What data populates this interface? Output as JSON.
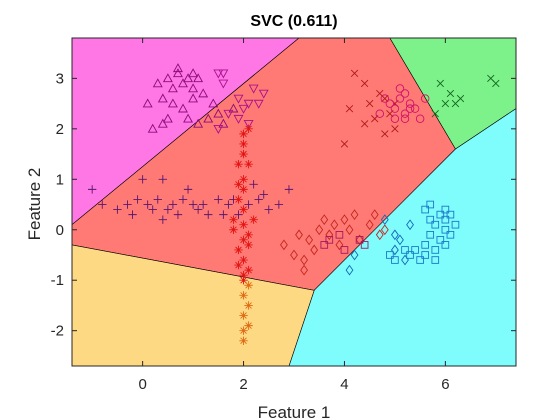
{
  "chart_data": {
    "type": "scatter",
    "title": "SVC (0.611)",
    "xlabel": "Feature 1",
    "ylabel": "Feature 2",
    "xlim": [
      -1.4,
      7.4
    ],
    "ylim": [
      -2.7,
      3.8
    ],
    "xticks": [
      0,
      2,
      4,
      6
    ],
    "yticks": [
      -2,
      -1,
      0,
      1,
      2,
      3
    ],
    "grid": false,
    "legend": "none",
    "regions": [
      {
        "name": "magenta",
        "color": "#ff77e5",
        "polygon": [
          [
            -1.4,
            3.8
          ],
          [
            3.1,
            3.8
          ],
          [
            -1.4,
            0.1
          ]
        ]
      },
      {
        "name": "red",
        "color": "#ff7a75",
        "polygon": [
          [
            3.1,
            3.8
          ],
          [
            4.9,
            3.8
          ],
          [
            6.2,
            1.6
          ],
          [
            3.4,
            -1.2
          ],
          [
            -1.4,
            -0.3
          ],
          [
            -1.4,
            0.1
          ]
        ]
      },
      {
        "name": "green",
        "color": "#7ef28a",
        "polygon": [
          [
            4.9,
            3.8
          ],
          [
            7.4,
            3.8
          ],
          [
            7.4,
            2.4
          ],
          [
            6.2,
            1.6
          ]
        ]
      },
      {
        "name": "cyan",
        "color": "#7ffdfd",
        "polygon": [
          [
            7.4,
            2.4
          ],
          [
            7.4,
            -2.7
          ],
          [
            2.9,
            -2.7
          ],
          [
            3.4,
            -1.2
          ],
          [
            6.2,
            1.6
          ]
        ]
      },
      {
        "name": "orange",
        "color": "#fed983",
        "polygon": [
          [
            -1.4,
            -0.3
          ],
          [
            3.4,
            -1.2
          ],
          [
            2.9,
            -2.7
          ],
          [
            -1.4,
            -2.7
          ]
        ]
      }
    ],
    "series": [
      {
        "marker": "triangle-up",
        "color": "#8b0a7a",
        "points": [
          [
            0.3,
            2.9
          ],
          [
            0.5,
            3.0
          ],
          [
            0.6,
            2.8
          ],
          [
            0.7,
            3.1
          ],
          [
            0.8,
            2.9
          ],
          [
            0.9,
            3.0
          ],
          [
            1.0,
            2.8
          ],
          [
            1.1,
            3.0
          ],
          [
            0.4,
            2.6
          ],
          [
            0.6,
            2.5
          ],
          [
            0.8,
            2.4
          ],
          [
            1.0,
            2.6
          ],
          [
            1.2,
            2.7
          ],
          [
            1.4,
            2.5
          ],
          [
            1.5,
            2.3
          ],
          [
            1.3,
            2.2
          ],
          [
            0.2,
            2.0
          ],
          [
            0.4,
            2.1
          ],
          [
            0.9,
            2.2
          ],
          [
            1.1,
            2.1
          ],
          [
            1.6,
            2.1
          ],
          [
            1.8,
            2.4
          ],
          [
            0.7,
            3.2
          ],
          [
            1.0,
            3.1
          ],
          [
            0.5,
            2.2
          ],
          [
            0.1,
            2.5
          ]
        ]
      },
      {
        "marker": "triangle-down",
        "color": "#a8108f",
        "points": [
          [
            1.5,
            3.1
          ],
          [
            1.6,
            2.9
          ],
          [
            1.9,
            2.6
          ],
          [
            2.0,
            2.4
          ],
          [
            2.1,
            2.1
          ],
          [
            2.2,
            2.8
          ],
          [
            2.3,
            2.5
          ],
          [
            1.7,
            2.3
          ],
          [
            1.5,
            2.0
          ],
          [
            2.4,
            2.7
          ],
          [
            1.6,
            3.1
          ],
          [
            2.1,
            2.5
          ],
          [
            1.9,
            2.2
          ]
        ]
      },
      {
        "marker": "x",
        "color": "#b01818",
        "points": [
          [
            4.2,
            3.1
          ],
          [
            4.5,
            2.5
          ],
          [
            4.6,
            2.2
          ],
          [
            4.8,
            2.6
          ],
          [
            4.9,
            2.3
          ],
          [
            5.0,
            2.0
          ],
          [
            4.4,
            2.1
          ],
          [
            4.1,
            2.4
          ],
          [
            4.7,
            2.7
          ],
          [
            4.0,
            1.7
          ],
          [
            4.8,
            1.9
          ],
          [
            5.0,
            2.5
          ],
          [
            4.4,
            2.9
          ]
        ]
      },
      {
        "marker": "x",
        "color": "#12661e",
        "points": [
          [
            5.9,
            2.9
          ],
          [
            6.1,
            2.7
          ],
          [
            6.2,
            2.5
          ],
          [
            6.3,
            2.6
          ],
          [
            6.9,
            3.0
          ],
          [
            7.0,
            2.9
          ],
          [
            5.8,
            2.3
          ],
          [
            6.0,
            2.5
          ]
        ]
      },
      {
        "marker": "circle",
        "color": "#d0106a",
        "points": [
          [
            4.9,
            2.5
          ],
          [
            5.0,
            2.4
          ],
          [
            5.1,
            2.6
          ],
          [
            5.2,
            2.3
          ],
          [
            5.3,
            2.5
          ],
          [
            5.0,
            2.2
          ],
          [
            5.2,
            2.7
          ],
          [
            5.4,
            2.4
          ],
          [
            5.5,
            2.2
          ],
          [
            5.1,
            2.8
          ],
          [
            4.7,
            2.3
          ],
          [
            5.3,
            2.4
          ],
          [
            5.6,
            2.6
          ],
          [
            5.2,
            2.2
          ],
          [
            4.8,
            2.6
          ]
        ]
      },
      {
        "marker": "plus",
        "color": "#5a1670",
        "points": [
          [
            -1.0,
            0.8
          ],
          [
            -0.5,
            0.4
          ],
          [
            -0.3,
            0.5
          ],
          [
            -0.1,
            0.6
          ],
          [
            0.0,
            1.0
          ],
          [
            0.1,
            0.5
          ],
          [
            0.2,
            0.4
          ],
          [
            0.3,
            0.6
          ],
          [
            0.5,
            0.4
          ],
          [
            0.6,
            0.5
          ],
          [
            0.7,
            0.3
          ],
          [
            0.8,
            0.6
          ],
          [
            1.0,
            0.5
          ],
          [
            1.1,
            0.4
          ],
          [
            1.3,
            0.3
          ],
          [
            1.5,
            0.6
          ],
          [
            1.7,
            0.5
          ],
          [
            1.9,
            0.3
          ],
          [
            2.1,
            0.5
          ],
          [
            2.3,
            0.6
          ],
          [
            2.4,
            0.7
          ],
          [
            2.5,
            0.4
          ],
          [
            2.7,
            0.5
          ],
          [
            2.9,
            0.8
          ],
          [
            0.4,
            1.0
          ],
          [
            0.9,
            0.8
          ],
          [
            1.2,
            0.5
          ],
          [
            1.6,
            0.3
          ],
          [
            -0.8,
            0.5
          ],
          [
            -0.2,
            0.3
          ],
          [
            0.4,
            0.2
          ],
          [
            1.8,
            0.6
          ],
          [
            2.2,
            0.9
          ]
        ]
      },
      {
        "marker": "asterisk",
        "color": "#e31414",
        "points": [
          [
            2.0,
            1.9
          ],
          [
            2.0,
            1.7
          ],
          [
            1.9,
            1.3
          ],
          [
            2.1,
            1.3
          ],
          [
            2.0,
            1.0
          ],
          [
            2.0,
            0.8
          ],
          [
            1.9,
            0.6
          ],
          [
            2.0,
            0.4
          ],
          [
            1.8,
            0.2
          ],
          [
            2.0,
            0.1
          ],
          [
            2.1,
            -0.1
          ],
          [
            2.0,
            -0.2
          ],
          [
            1.9,
            -0.4
          ],
          [
            2.0,
            -0.6
          ],
          [
            1.9,
            -0.7
          ],
          [
            2.1,
            -0.8
          ],
          [
            2.0,
            -1.0
          ],
          [
            2.1,
            -0.3
          ],
          [
            1.8,
            0.0
          ],
          [
            2.2,
            0.2
          ],
          [
            2.0,
            1.5
          ],
          [
            1.9,
            0.9
          ],
          [
            2.1,
            2.0
          ],
          [
            2.0,
            -0.9
          ]
        ]
      },
      {
        "marker": "asterisk",
        "color": "#e06a12",
        "points": [
          [
            2.0,
            -1.3
          ],
          [
            2.1,
            -1.5
          ],
          [
            2.0,
            -1.7
          ],
          [
            2.1,
            -1.9
          ],
          [
            2.0,
            -2.2
          ],
          [
            2.0,
            -2.0
          ],
          [
            2.1,
            -1.1
          ]
        ]
      },
      {
        "marker": "diamond",
        "color": "#c4261e",
        "points": [
          [
            2.8,
            -0.3
          ],
          [
            3.0,
            -0.5
          ],
          [
            3.2,
            -0.8
          ],
          [
            3.3,
            -0.2
          ],
          [
            3.5,
            0.0
          ],
          [
            3.6,
            0.2
          ],
          [
            3.7,
            -0.1
          ],
          [
            3.8,
            0.1
          ],
          [
            3.9,
            -0.3
          ],
          [
            4.0,
            0.2
          ],
          [
            4.1,
            0.0
          ],
          [
            4.3,
            -0.2
          ],
          [
            4.5,
            0.1
          ],
          [
            4.6,
            0.3
          ],
          [
            4.7,
            -0.1
          ],
          [
            3.4,
            -0.4
          ],
          [
            3.1,
            -0.1
          ],
          [
            3.2,
            -0.6
          ],
          [
            4.8,
            0.0
          ],
          [
            4.2,
            0.3
          ]
        ]
      },
      {
        "marker": "diamond",
        "color": "#1566b5",
        "points": [
          [
            4.8,
            0.2
          ],
          [
            5.1,
            -0.2
          ],
          [
            5.2,
            -0.6
          ],
          [
            5.0,
            -0.4
          ],
          [
            4.1,
            -0.8
          ],
          [
            4.2,
            -0.5
          ],
          [
            5.3,
            0.1
          ],
          [
            5.0,
            -0.1
          ]
        ]
      },
      {
        "marker": "square",
        "color": "#1b78c9",
        "points": [
          [
            5.6,
            0.4
          ],
          [
            5.7,
            0.2
          ],
          [
            5.8,
            0.1
          ],
          [
            5.9,
            0.3
          ],
          [
            6.0,
            0.2
          ],
          [
            6.0,
            0.0
          ],
          [
            6.1,
            -0.1
          ],
          [
            6.2,
            0.1
          ],
          [
            5.9,
            -0.2
          ],
          [
            6.0,
            -0.3
          ],
          [
            5.7,
            -0.1
          ],
          [
            5.6,
            -0.3
          ],
          [
            5.4,
            -0.4
          ],
          [
            5.3,
            -0.5
          ],
          [
            5.5,
            -0.6
          ],
          [
            5.8,
            -0.6
          ],
          [
            6.1,
            0.3
          ],
          [
            5.7,
            0.5
          ],
          [
            5.8,
            -0.4
          ],
          [
            5.2,
            -0.4
          ],
          [
            5.0,
            -0.6
          ],
          [
            4.9,
            -0.5
          ],
          [
            5.6,
            -0.5
          ],
          [
            6.0,
            0.4
          ]
        ]
      },
      {
        "marker": "square",
        "color": "#a4185e",
        "points": [
          [
            3.7,
            -0.2
          ],
          [
            3.9,
            -0.1
          ],
          [
            4.0,
            -0.4
          ],
          [
            3.6,
            -0.3
          ],
          [
            4.3,
            -0.2
          ],
          [
            4.4,
            -0.3
          ]
        ]
      }
    ]
  }
}
